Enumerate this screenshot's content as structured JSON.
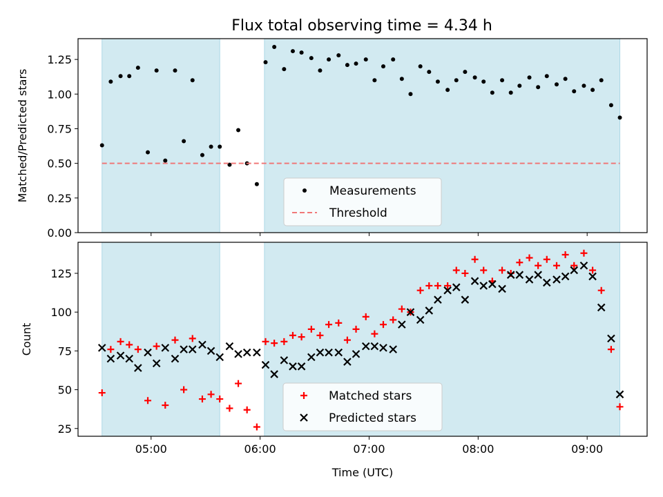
{
  "title": "Flux total observing time = 4.34 h",
  "chart_data": [
    {
      "type": "scatter",
      "panel": "top",
      "ylabel": "Matched/Predicted stars",
      "xlabel": "",
      "xlim_hours": [
        4.33,
        9.55
      ],
      "ylim": [
        0,
        1.4
      ],
      "yticks": [
        0.0,
        0.25,
        0.5,
        0.75,
        1.0,
        1.25
      ],
      "ytick_labels": [
        "0.00",
        "0.25",
        "0.50",
        "0.75",
        "1.00",
        "1.25"
      ],
      "shaded_spans_hours": [
        [
          4.55,
          5.63
        ],
        [
          6.04,
          9.3
        ]
      ],
      "threshold": 0.5,
      "legend": {
        "placement": "lower center",
        "entries": [
          "Measurements",
          "Threshold"
        ]
      },
      "series": [
        {
          "name": "Measurements",
          "color": "#000000",
          "marker": "dot",
          "x_hours": [
            4.55,
            4.63,
            4.72,
            4.8,
            4.88,
            4.97,
            5.05,
            5.13,
            5.22,
            5.3,
            5.38,
            5.47,
            5.55,
            5.63,
            5.72,
            5.8,
            5.88,
            5.97,
            6.05,
            6.13,
            6.22,
            6.3,
            6.38,
            6.47,
            6.55,
            6.63,
            6.72,
            6.8,
            6.88,
            6.97,
            7.05,
            7.13,
            7.22,
            7.3,
            7.38,
            7.47,
            7.55,
            7.63,
            7.72,
            7.8,
            7.88,
            7.97,
            8.05,
            8.13,
            8.22,
            8.3,
            8.38,
            8.47,
            8.55,
            8.63,
            8.72,
            8.8,
            8.88,
            8.97,
            9.05,
            9.13,
            9.22,
            9.3
          ],
          "values": [
            0.63,
            1.09,
            1.13,
            1.13,
            1.19,
            0.58,
            1.17,
            0.52,
            1.17,
            0.66,
            1.1,
            0.56,
            0.62,
            0.62,
            0.49,
            0.74,
            0.5,
            0.35,
            1.23,
            1.34,
            1.18,
            1.31,
            1.3,
            1.26,
            1.17,
            1.25,
            1.28,
            1.21,
            1.22,
            1.25,
            1.1,
            1.2,
            1.25,
            1.11,
            1.0,
            1.2,
            1.16,
            1.09,
            1.03,
            1.1,
            1.16,
            1.12,
            1.09,
            1.01,
            1.1,
            1.01,
            1.06,
            1.12,
            1.05,
            1.13,
            1.07,
            1.11,
            1.02,
            1.06,
            1.03,
            1.1,
            0.92,
            0.83
          ]
        },
        {
          "name": "Threshold",
          "color": "#f07878",
          "style": "dashed",
          "value": 0.5
        }
      ]
    },
    {
      "type": "scatter",
      "panel": "bottom",
      "ylabel": "Count",
      "xlabel": "Time (UTC)",
      "xlim_hours": [
        4.33,
        9.55
      ],
      "ylim": [
        20,
        145
      ],
      "yticks": [
        25,
        50,
        75,
        100,
        125
      ],
      "ytick_labels": [
        "25",
        "50",
        "75",
        "100",
        "125"
      ],
      "xticks_hours": [
        5,
        6,
        7,
        8,
        9
      ],
      "xtick_labels": [
        "05:00",
        "06:00",
        "07:00",
        "08:00",
        "09:00"
      ],
      "shaded_spans_hours": [
        [
          4.55,
          5.63
        ],
        [
          6.04,
          9.3
        ]
      ],
      "legend": {
        "placement": "lower center",
        "entries": [
          "Matched stars",
          "Predicted stars"
        ]
      },
      "series": [
        {
          "name": "Matched stars",
          "color": "#ff0000",
          "marker": "plus",
          "x_hours": [
            4.55,
            4.63,
            4.72,
            4.8,
            4.88,
            4.97,
            5.05,
            5.13,
            5.22,
            5.3,
            5.38,
            5.47,
            5.55,
            5.63,
            5.72,
            5.8,
            5.88,
            5.97,
            6.05,
            6.13,
            6.22,
            6.3,
            6.38,
            6.47,
            6.55,
            6.63,
            6.72,
            6.8,
            6.88,
            6.97,
            7.05,
            7.13,
            7.22,
            7.3,
            7.38,
            7.47,
            7.55,
            7.63,
            7.72,
            7.8,
            7.88,
            7.97,
            8.05,
            8.13,
            8.22,
            8.3,
            8.38,
            8.47,
            8.55,
            8.63,
            8.72,
            8.8,
            8.88,
            8.97,
            9.05,
            9.13,
            9.22,
            9.3
          ],
          "values": [
            48,
            76,
            81,
            79,
            76,
            43,
            78,
            40,
            82,
            50,
            83,
            44,
            47,
            44,
            38,
            54,
            37,
            26,
            81,
            80,
            81,
            85,
            84,
            89,
            85,
            92,
            93,
            82,
            89,
            97,
            86,
            92,
            95,
            102,
            100,
            114,
            117,
            117,
            117,
            127,
            125,
            134,
            127,
            120,
            127,
            125,
            132,
            135,
            130,
            134,
            130,
            137,
            130,
            138,
            127,
            114,
            76,
            39
          ]
        },
        {
          "name": "Predicted stars",
          "color": "#000000",
          "marker": "x",
          "x_hours": [
            4.55,
            4.63,
            4.72,
            4.8,
            4.88,
            4.97,
            5.05,
            5.13,
            5.22,
            5.3,
            5.38,
            5.47,
            5.55,
            5.63,
            5.72,
            5.8,
            5.88,
            5.97,
            6.05,
            6.13,
            6.22,
            6.3,
            6.38,
            6.47,
            6.55,
            6.63,
            6.72,
            6.8,
            6.88,
            6.97,
            7.05,
            7.13,
            7.22,
            7.3,
            7.38,
            7.47,
            7.55,
            7.63,
            7.72,
            7.8,
            7.88,
            7.97,
            8.05,
            8.13,
            8.22,
            8.3,
            8.38,
            8.47,
            8.55,
            8.63,
            8.72,
            8.8,
            8.88,
            8.97,
            9.05,
            9.13,
            9.22,
            9.3
          ],
          "values": [
            77,
            70,
            72,
            70,
            64,
            74,
            67,
            77,
            70,
            76,
            76,
            79,
            75,
            71,
            78,
            73,
            74,
            74,
            66,
            60,
            69,
            65,
            65,
            71,
            74,
            74,
            74,
            68,
            73,
            78,
            78,
            77,
            76,
            92,
            100,
            95,
            101,
            108,
            114,
            116,
            108,
            120,
            117,
            118,
            115,
            124,
            124,
            121,
            124,
            119,
            121,
            123,
            127,
            130,
            123,
            103,
            83,
            47
          ]
        }
      ]
    }
  ]
}
